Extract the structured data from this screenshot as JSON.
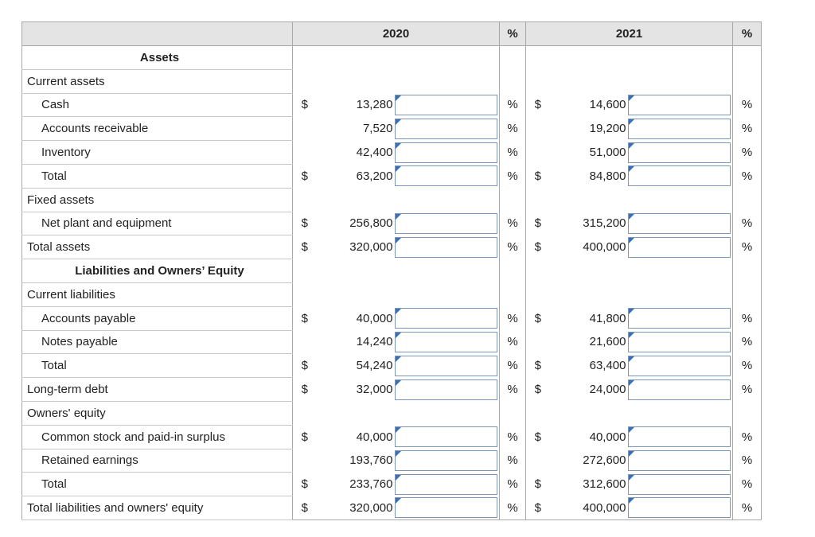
{
  "table": {
    "header": [
      "2020",
      "%",
      "2021",
      "%"
    ],
    "rows": [
      {
        "label": "Assets"
      },
      {
        "label": "Current assets"
      },
      {
        "label": "Cash",
        "c2020": "$",
        "v2020": "13,280",
        "p2020": "%",
        "c2021": "$",
        "v2021": "14,600",
        "p2021": "%"
      },
      {
        "label": "Accounts receivable",
        "v2020": "7,520",
        "p2020": "%",
        "v2021": "19,200",
        "p2021": "%"
      },
      {
        "label": "Inventory",
        "v2020": "42,400",
        "p2020": "%",
        "v2021": "51,000",
        "p2021": "%"
      },
      {
        "label": "Total",
        "c2020": "$",
        "v2020": "63,200",
        "p2020": "%",
        "c2021": "$",
        "v2021": "84,800",
        "p2021": "%"
      },
      {
        "label": "Fixed assets"
      },
      {
        "label": "Net plant and equipment",
        "c2020": "$",
        "v2020": "256,800",
        "p2020": "%",
        "c2021": "$",
        "v2021": "315,200",
        "p2021": "%"
      },
      {
        "label": "Total assets",
        "c2020": "$",
        "v2020": "320,000",
        "p2020": "%",
        "c2021": "$",
        "v2021": "400,000",
        "p2021": "%"
      },
      {
        "label": "Liabilities and Owners’ Equity"
      },
      {
        "label": "Current liabilities"
      },
      {
        "label": "Accounts payable",
        "c2020": "$",
        "v2020": "40,000",
        "p2020": "%",
        "c2021": "$",
        "v2021": "41,800",
        "p2021": "%"
      },
      {
        "label": "Notes payable",
        "v2020": "14,240",
        "p2020": "%",
        "v2021": "21,600",
        "p2021": "%"
      },
      {
        "label": "Total",
        "c2020": "$",
        "v2020": "54,240",
        "p2020": "%",
        "c2021": "$",
        "v2021": "63,400",
        "p2021": "%"
      },
      {
        "label": "Long-term debt",
        "c2020": "$",
        "v2020": "32,000",
        "p2020": "%",
        "c2021": "$",
        "v2021": "24,000",
        "p2021": "%"
      },
      {
        "label": "Owners' equity"
      },
      {
        "label": "Common stock and paid-in surplus",
        "c2020": "$",
        "v2020": "40,000",
        "p2020": "%",
        "c2021": "$",
        "v2021": "40,000",
        "p2021": "%"
      },
      {
        "label": "Retained earnings",
        "v2020": "193,760",
        "p2020": "%",
        "v2021": "272,600",
        "p2021": "%"
      },
      {
        "label": "Total",
        "c2020": "$",
        "v2020": "233,760",
        "p2020": "%",
        "c2021": "$",
        "v2021": "312,600",
        "p2021": "%"
      },
      {
        "label": "Total liabilities and owners' equity",
        "c2020": "$",
        "v2020": "320,000",
        "p2020": "%",
        "c2021": "$",
        "v2021": "400,000",
        "p2021": "%"
      }
    ]
  }
}
